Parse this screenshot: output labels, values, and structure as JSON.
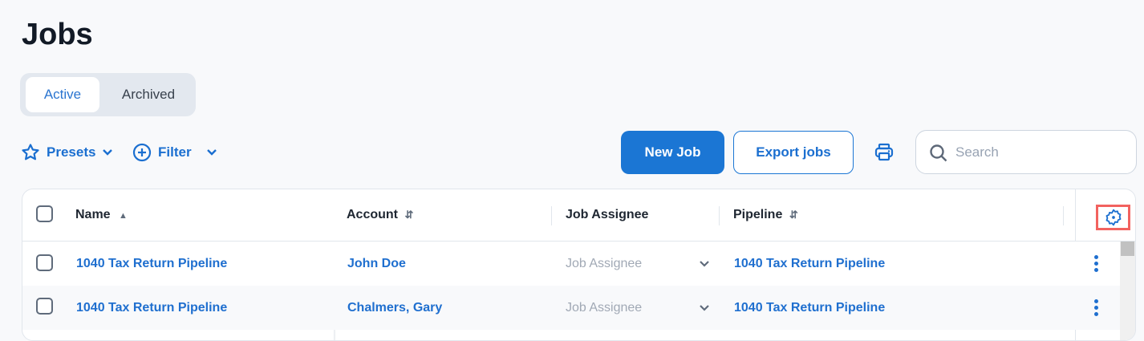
{
  "page": {
    "title": "Jobs"
  },
  "tabs": [
    {
      "label": "Active",
      "selected": true
    },
    {
      "label": "Archived",
      "selected": false
    }
  ],
  "toolbar": {
    "presets": "Presets",
    "filter": "Filter",
    "new_job": "New Job",
    "export": "Export jobs",
    "search_placeholder": "Search"
  },
  "table": {
    "columns": [
      "Name",
      "Account",
      "Job Assignee",
      "Pipeline"
    ],
    "rows": [
      {
        "name": "1040 Tax Return Pipeline",
        "account": "John Doe",
        "assignee_placeholder": "Job Assignee",
        "pipeline": "1040 Tax Return Pipeline"
      },
      {
        "name": "1040 Tax Return Pipeline",
        "account": "Chalmers, Gary",
        "assignee_placeholder": "Job Assignee",
        "pipeline": "1040 Tax Return Pipeline"
      }
    ]
  },
  "colors": {
    "accent": "#1b76d4",
    "highlight": "#f2625f"
  }
}
